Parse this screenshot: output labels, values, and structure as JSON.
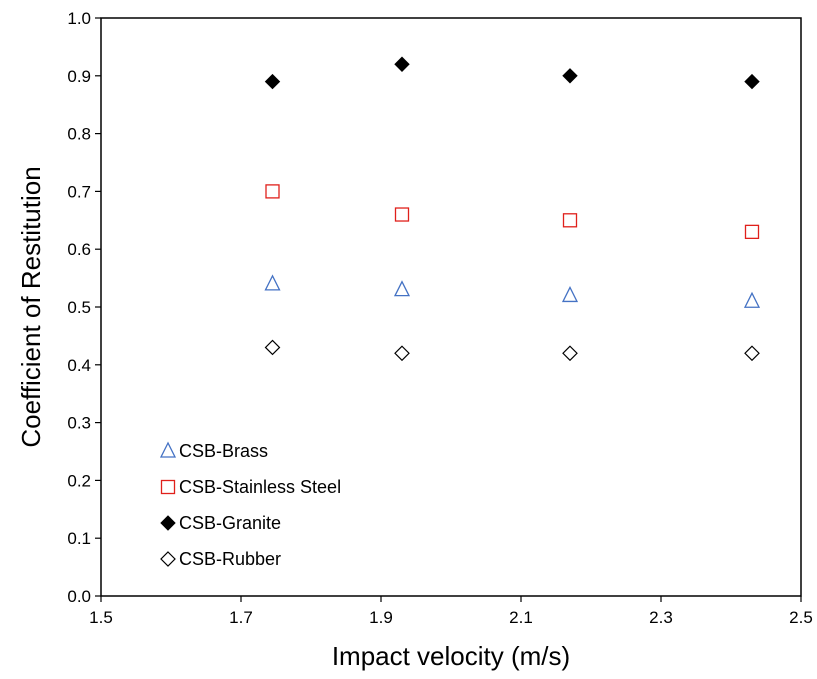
{
  "chart_data": {
    "type": "scatter",
    "xlabel": "Impact velocity (m/s)",
    "ylabel": "Coefficient of Restitution",
    "xlim": [
      1.5,
      2.5
    ],
    "ylim": [
      0.0,
      1.0
    ],
    "x_ticks": [
      "1.5",
      "1.7",
      "1.9",
      "2.1",
      "2.3",
      "2.5"
    ],
    "y_ticks": [
      "0.0",
      "0.1",
      "0.2",
      "0.3",
      "0.4",
      "0.5",
      "0.6",
      "0.7",
      "0.8",
      "0.9",
      "1.0"
    ],
    "grid": false,
    "legend_position": "bottom-left",
    "series": [
      {
        "name": "CSB-Brass",
        "marker": "triangle-open",
        "color": "#4472C4",
        "x": [
          1.745,
          1.93,
          2.17,
          2.43
        ],
        "y": [
          0.54,
          0.53,
          0.52,
          0.51
        ]
      },
      {
        "name": "CSB-Stainless Steel",
        "marker": "square-open",
        "color": "#E0201B",
        "x": [
          1.745,
          1.93,
          2.17,
          2.43
        ],
        "y": [
          0.7,
          0.66,
          0.65,
          0.63
        ]
      },
      {
        "name": "CSB-Granite",
        "marker": "diamond-filled",
        "color": "#000000",
        "x": [
          1.745,
          1.93,
          2.17,
          2.43
        ],
        "y": [
          0.89,
          0.92,
          0.9,
          0.89
        ]
      },
      {
        "name": "CSB-Rubber",
        "marker": "diamond-open",
        "color": "#000000",
        "x": [
          1.745,
          1.93,
          2.17,
          2.43
        ],
        "y": [
          0.43,
          0.42,
          0.42,
          0.42
        ]
      }
    ]
  }
}
